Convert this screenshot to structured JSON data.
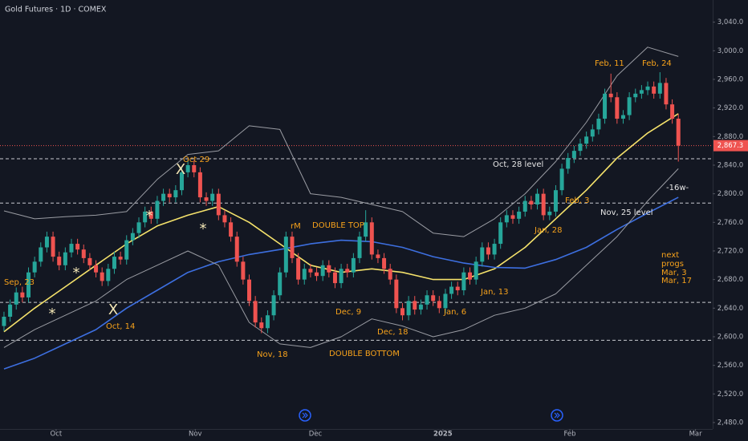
{
  "chart_data": {
    "type": "candlestick",
    "title": "Gold Futures · 1D · COMEX",
    "up_color": "#26a69a",
    "down_color": "#ef5350",
    "candles": [
      [
        2615,
        2635,
        2608,
        2628
      ],
      [
        2628,
        2652,
        2621,
        2645
      ],
      [
        2645,
        2669,
        2638,
        2662
      ],
      [
        2662,
        2670,
        2648,
        2655
      ],
      [
        2655,
        2697,
        2648,
        2690
      ],
      [
        2690,
        2712,
        2683,
        2705
      ],
      [
        2705,
        2732,
        2698,
        2725
      ],
      [
        2725,
        2747,
        2718,
        2740
      ],
      [
        2740,
        2747,
        2705,
        2712
      ],
      [
        2712,
        2719,
        2693,
        2700
      ],
      [
        2700,
        2725,
        2693,
        2718
      ],
      [
        2718,
        2737,
        2711,
        2730
      ],
      [
        2730,
        2737,
        2715,
        2722
      ],
      [
        2722,
        2729,
        2703,
        2710
      ],
      [
        2710,
        2717,
        2693,
        2700
      ],
      [
        2700,
        2707,
        2683,
        2690
      ],
      [
        2690,
        2697,
        2671,
        2678
      ],
      [
        2678,
        2702,
        2671,
        2695
      ],
      [
        2695,
        2719,
        2688,
        2712
      ],
      [
        2712,
        2719,
        2701,
        2708
      ],
      [
        2708,
        2742,
        2701,
        2735
      ],
      [
        2735,
        2752,
        2728,
        2745
      ],
      [
        2745,
        2767,
        2738,
        2760
      ],
      [
        2760,
        2782,
        2753,
        2775
      ],
      [
        2775,
        2782,
        2758,
        2765
      ],
      [
        2765,
        2797,
        2758,
        2790
      ],
      [
        2790,
        2807,
        2783,
        2800
      ],
      [
        2800,
        2807,
        2788,
        2795
      ],
      [
        2795,
        2812,
        2788,
        2805
      ],
      [
        2805,
        2837,
        2798,
        2830
      ],
      [
        2830,
        2847,
        2823,
        2840
      ],
      [
        2840,
        2847,
        2823,
        2830
      ],
      [
        2830,
        2837,
        2788,
        2795
      ],
      [
        2795,
        2802,
        2783,
        2790
      ],
      [
        2790,
        2807,
        2783,
        2800
      ],
      [
        2800,
        2807,
        2763,
        2770
      ],
      [
        2770,
        2777,
        2753,
        2760
      ],
      [
        2760,
        2767,
        2733,
        2740
      ],
      [
        2740,
        2747,
        2698,
        2705
      ],
      [
        2705,
        2712,
        2673,
        2680
      ],
      [
        2680,
        2687,
        2643,
        2650
      ],
      [
        2650,
        2657,
        2613,
        2620
      ],
      [
        2620,
        2627,
        2605,
        2612
      ],
      [
        2612,
        2637,
        2605,
        2630
      ],
      [
        2630,
        2665,
        2623,
        2658
      ],
      [
        2658,
        2697,
        2651,
        2690
      ],
      [
        2690,
        2747,
        2683,
        2740
      ],
      [
        2740,
        2747,
        2703,
        2710
      ],
      [
        2710,
        2717,
        2673,
        2680
      ],
      [
        2680,
        2702,
        2673,
        2695
      ],
      [
        2695,
        2702,
        2683,
        2690
      ],
      [
        2690,
        2697,
        2678,
        2685
      ],
      [
        2685,
        2707,
        2678,
        2700
      ],
      [
        2700,
        2707,
        2683,
        2690
      ],
      [
        2690,
        2697,
        2668,
        2675
      ],
      [
        2675,
        2702,
        2668,
        2695
      ],
      [
        2695,
        2702,
        2683,
        2690
      ],
      [
        2690,
        2717,
        2683,
        2710
      ],
      [
        2710,
        2747,
        2703,
        2740
      ],
      [
        2740,
        2777,
        2733,
        2760
      ],
      [
        2760,
        2767,
        2708,
        2715
      ],
      [
        2715,
        2722,
        2703,
        2710
      ],
      [
        2710,
        2717,
        2688,
        2695
      ],
      [
        2695,
        2702,
        2673,
        2680
      ],
      [
        2680,
        2687,
        2633,
        2640
      ],
      [
        2640,
        2647,
        2623,
        2630
      ],
      [
        2630,
        2657,
        2623,
        2650
      ],
      [
        2650,
        2657,
        2631,
        2638
      ],
      [
        2638,
        2652,
        2631,
        2645
      ],
      [
        2645,
        2665,
        2638,
        2658
      ],
      [
        2658,
        2665,
        2643,
        2650
      ],
      [
        2650,
        2657,
        2633,
        2640
      ],
      [
        2640,
        2667,
        2633,
        2660
      ],
      [
        2660,
        2677,
        2653,
        2670
      ],
      [
        2670,
        2677,
        2658,
        2665
      ],
      [
        2665,
        2697,
        2658,
        2690
      ],
      [
        2690,
        2697,
        2673,
        2680
      ],
      [
        2680,
        2712,
        2673,
        2705
      ],
      [
        2705,
        2732,
        2698,
        2725
      ],
      [
        2725,
        2732,
        2708,
        2715
      ],
      [
        2715,
        2737,
        2708,
        2730
      ],
      [
        2730,
        2767,
        2723,
        2760
      ],
      [
        2760,
        2777,
        2753,
        2770
      ],
      [
        2770,
        2777,
        2758,
        2765
      ],
      [
        2765,
        2782,
        2758,
        2775
      ],
      [
        2775,
        2797,
        2768,
        2790
      ],
      [
        2790,
        2797,
        2778,
        2785
      ],
      [
        2785,
        2807,
        2778,
        2800
      ],
      [
        2800,
        2807,
        2763,
        2770
      ],
      [
        2770,
        2782,
        2763,
        2775
      ],
      [
        2775,
        2812,
        2768,
        2805
      ],
      [
        2805,
        2842,
        2798,
        2835
      ],
      [
        2835,
        2857,
        2828,
        2850
      ],
      [
        2850,
        2867,
        2843,
        2860
      ],
      [
        2860,
        2877,
        2853,
        2870
      ],
      [
        2870,
        2887,
        2863,
        2880
      ],
      [
        2880,
        2897,
        2873,
        2890
      ],
      [
        2890,
        2912,
        2883,
        2905
      ],
      [
        2905,
        2947,
        2898,
        2940
      ],
      [
        2940,
        2968,
        2928,
        2935
      ],
      [
        2935,
        2942,
        2898,
        2905
      ],
      [
        2905,
        2917,
        2898,
        2910
      ],
      [
        2910,
        2942,
        2903,
        2935
      ],
      [
        2935,
        2947,
        2928,
        2940
      ],
      [
        2940,
        2952,
        2933,
        2945
      ],
      [
        2945,
        2957,
        2938,
        2950
      ],
      [
        2950,
        2957,
        2933,
        2940
      ],
      [
        2940,
        2970,
        2933,
        2955
      ],
      [
        2955,
        2962,
        2918,
        2925
      ],
      [
        2925,
        2932,
        2898,
        2905
      ],
      [
        2905,
        2912,
        2845,
        2867.3
      ]
    ],
    "series": [
      {
        "color": "#f5e26b",
        "x": [
          0,
          5,
          10,
          15,
          20,
          25,
          30,
          35,
          40,
          45,
          50,
          55,
          60,
          65,
          70,
          75,
          80,
          85,
          90,
          95,
          100,
          105,
          110
        ],
        "values": [
          2607,
          2640,
          2670,
          2700,
          2730,
          2755,
          2770,
          2782,
          2760,
          2730,
          2700,
          2690,
          2695,
          2690,
          2680,
          2680,
          2695,
          2725,
          2765,
          2805,
          2850,
          2885,
          2912
        ]
      },
      {
        "color": "#3d6fe0",
        "x": [
          0,
          5,
          10,
          15,
          20,
          25,
          30,
          35,
          40,
          45,
          50,
          55,
          60,
          65,
          70,
          75,
          80,
          85,
          90,
          95,
          100,
          105,
          110
        ],
        "values": [
          2555,
          2570,
          2590,
          2610,
          2640,
          2665,
          2690,
          2705,
          2715,
          2722,
          2730,
          2735,
          2733,
          2725,
          2712,
          2703,
          2697,
          2696,
          2708,
          2725,
          2750,
          2773,
          2795
        ]
      },
      {
        "color": "#9a9ca3",
        "x": [
          0,
          5,
          10,
          15,
          20,
          25,
          30,
          35,
          40,
          45,
          50,
          55,
          60,
          65,
          70,
          75,
          80,
          85,
          90,
          95,
          100,
          105,
          110
        ],
        "values": [
          2776,
          2765,
          2768,
          2770,
          2775,
          2820,
          2855,
          2860,
          2895,
          2890,
          2800,
          2795,
          2785,
          2775,
          2745,
          2740,
          2765,
          2800,
          2845,
          2900,
          2965,
          3005,
          2992
        ]
      },
      {
        "color": "#9a9ca3",
        "x": [
          0,
          5,
          10,
          15,
          20,
          25,
          30,
          35,
          40,
          45,
          50,
          55,
          60,
          65,
          70,
          75,
          80,
          85,
          90,
          95,
          100,
          105,
          110
        ],
        "values": [
          2585,
          2610,
          2630,
          2650,
          2680,
          2700,
          2720,
          2700,
          2620,
          2590,
          2585,
          2600,
          2625,
          2615,
          2600,
          2610,
          2630,
          2640,
          2660,
          2700,
          2740,
          2790,
          2835
        ]
      }
    ],
    "levels": [
      2849,
      2787,
      2648,
      2595
    ],
    "last_price": {
      "value": 2867.3,
      "label": "2,867.3"
    },
    "xlim": [
      -0.65,
      115.6
    ],
    "xticks": [
      {
        "value": 8.5,
        "label": "Oct"
      },
      {
        "value": 31.2,
        "label": "Nov"
      },
      {
        "value": 50.8,
        "label": "Dec"
      },
      {
        "value": 71.6,
        "label": "2025"
      },
      {
        "value": 92.3,
        "label": "Feb"
      },
      {
        "value": 112.8,
        "label": "Mar"
      }
    ],
    "ylim": [
      2471,
      3071
    ],
    "yticks": [
      {
        "value": 3040,
        "label": "3,040.0"
      },
      {
        "value": 3000,
        "label": "3,000.0"
      },
      {
        "value": 2960,
        "label": "2,960.0"
      },
      {
        "value": 2920,
        "label": "2,920.0"
      },
      {
        "value": 2880,
        "label": "2,880.0"
      },
      {
        "value": 2840,
        "label": "2,840.0"
      },
      {
        "value": 2800,
        "label": "2,800.0"
      },
      {
        "value": 2760,
        "label": "2,760.0"
      },
      {
        "value": 2720,
        "label": "2,720.0"
      },
      {
        "value": 2680,
        "label": "2,680.0"
      },
      {
        "value": 2640,
        "label": "2,640.0"
      },
      {
        "value": 2600,
        "label": "2,600.0"
      },
      {
        "value": 2560,
        "label": "2,560.0"
      },
      {
        "value": 2520,
        "label": "2,520.0"
      },
      {
        "value": 2480,
        "label": "2,480.0"
      }
    ],
    "annotations": [
      "Sep, 23",
      "Oct, 14",
      "Oct 29",
      "Nov, 18",
      "rM",
      "DOUBLE TOP",
      "Dec, 9",
      "Dec, 18",
      "DOUBLE BOTTOM",
      "Jan, 6",
      "Jan, 13",
      "Jan, 28",
      "Feb, 3",
      "Feb, 11",
      "Feb, 24",
      "Oct, 28 level",
      "Nov, 25 level",
      "-16w-",
      "next",
      "progs",
      "Mar, 3",
      "Mar, 17"
    ],
    "markers": [
      "*",
      "*",
      "X",
      "*",
      "X",
      "*"
    ]
  }
}
